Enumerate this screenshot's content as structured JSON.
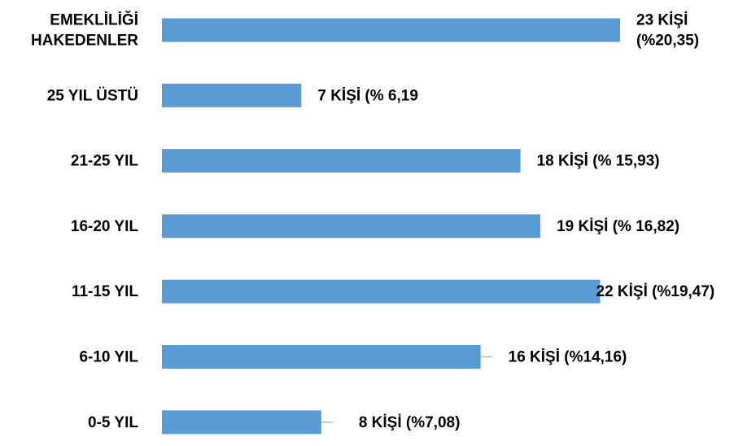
{
  "chart_data": {
    "type": "bar",
    "orientation": "horizontal",
    "categories": [
      "EMEKLİLİĞİ HAKEDENLER",
      "25 YIL ÜSTÜ",
      "21-25 YIL",
      "16-20 YIL",
      "11-15 YIL",
      "6-10 YIL",
      "0-5 YIL"
    ],
    "category_label_lines": [
      [
        "EMEKLİLİĞİ",
        "HAKEDENLER"
      ],
      [
        "25 YIL ÜSTÜ"
      ],
      [
        "21-25 YIL"
      ],
      [
        "16-20 YIL"
      ],
      [
        "11-15 YIL"
      ],
      [
        "6-10 YIL"
      ],
      [
        "0-5 YIL"
      ]
    ],
    "values": [
      23,
      7,
      18,
      19,
      22,
      16,
      8
    ],
    "data_labels": [
      [
        "23 KİŞİ",
        "(%20,35)"
      ],
      [
        "7 KİŞİ (% 6,19"
      ],
      [
        "18 KİŞİ (% 15,93)"
      ],
      [
        "19 KİŞİ (% 16,82)"
      ],
      [
        "22 KİŞİ (%19,47)"
      ],
      [
        "16 KİŞİ (%14,16)"
      ],
      [
        "8 KİŞİ (%7,08)"
      ]
    ],
    "title": "",
    "xlabel": "",
    "ylabel": "",
    "xlim": [
      0,
      23
    ],
    "grid": false,
    "legend": "none",
    "bar_color": "#5B9BD5",
    "leader_line_color": "#A6A6A6"
  }
}
